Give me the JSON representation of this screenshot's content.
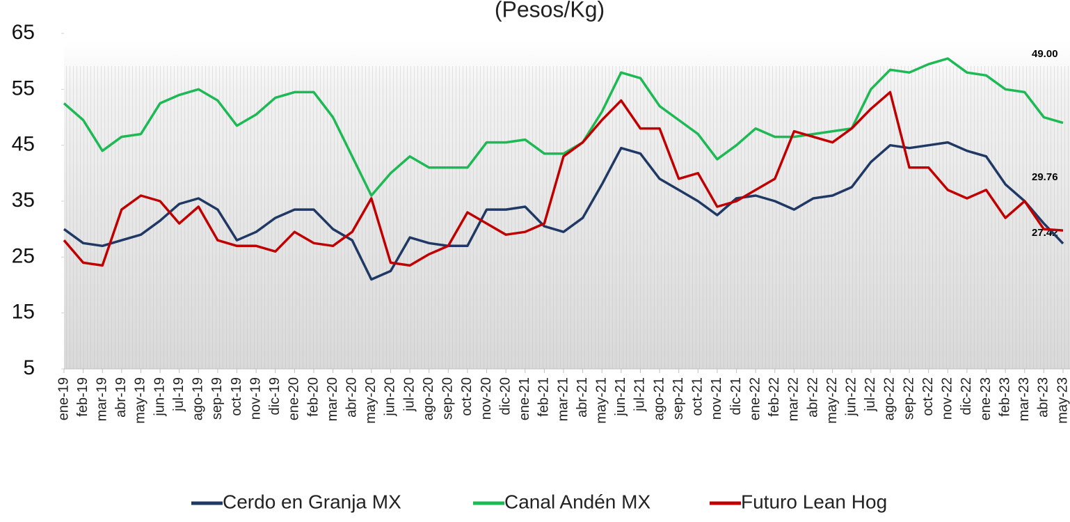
{
  "chart_data": {
    "type": "line",
    "title": "(Pesos/Kg)",
    "categories": [
      "ene-19",
      "feb-19",
      "mar-19",
      "abr-19",
      "may-19",
      "jun-19",
      "jul-19",
      "ago-19",
      "sep-19",
      "oct-19",
      "nov-19",
      "dic-19",
      "ene-20",
      "feb-20",
      "mar-20",
      "abr-20",
      "may-20",
      "jun-20",
      "jul-20",
      "ago-20",
      "sep-20",
      "oct-20",
      "nov-20",
      "dic-20",
      "ene-21",
      "feb-21",
      "mar-21",
      "abr-21",
      "may-21",
      "jun-21",
      "jul-21",
      "ago-21",
      "sep-21",
      "oct-21",
      "nov-21",
      "dic-21",
      "ene-22",
      "feb-22",
      "mar-22",
      "abr-22",
      "may-22",
      "jun-22",
      "jul-22",
      "ago-22",
      "sep-22",
      "oct-22",
      "nov-22",
      "dic-22",
      "ene-23",
      "feb-23",
      "mar-23",
      "abr-23",
      "may-23"
    ],
    "series": [
      {
        "name": "Cerdo en Granja MX",
        "color": "#1f3864",
        "values": [
          30,
          27.5,
          27,
          28,
          29,
          31.5,
          34.5,
          35.5,
          33.5,
          28,
          29.5,
          32,
          33.5,
          33.5,
          30,
          28,
          21,
          22.5,
          28.5,
          27.5,
          27,
          27,
          33.5,
          33.5,
          34,
          30.5,
          29.5,
          32,
          38,
          44.5,
          43.5,
          39,
          37,
          35,
          32.5,
          35.5,
          36,
          35,
          33.5,
          35.5,
          36,
          37.5,
          42,
          45,
          44.5,
          45,
          45.5,
          44,
          43,
          38,
          35,
          31,
          27.42
        ]
      },
      {
        "name": "Canal Andén MX",
        "color": "#1db954",
        "values": [
          52.5,
          49.5,
          44,
          46.5,
          47,
          52.5,
          54,
          55,
          53,
          48.5,
          50.5,
          53.5,
          54.5,
          54.5,
          50,
          43,
          36,
          40,
          43,
          41,
          41,
          41,
          45.5,
          45.5,
          46,
          43.5,
          43.5,
          45.5,
          51,
          58,
          57,
          52,
          49.5,
          47,
          42.5,
          45,
          48,
          46.5,
          46.5,
          47,
          47.5,
          48,
          55,
          58.5,
          58,
          59.5,
          60.5,
          58,
          57.5,
          55,
          54.5,
          50,
          49
        ]
      },
      {
        "name": "Futuro Lean Hog",
        "color": "#c00000",
        "values": [
          28,
          24,
          23.5,
          33.5,
          36,
          35,
          31,
          34,
          28,
          27,
          27,
          26,
          29.5,
          27.5,
          27,
          29.5,
          35.5,
          24,
          23.5,
          25.5,
          27,
          33,
          31,
          29,
          29.5,
          31,
          43,
          45.5,
          49.5,
          53,
          48,
          48,
          39,
          40,
          34,
          35,
          37,
          39,
          47.5,
          46.5,
          45.5,
          48,
          51.5,
          54.5,
          41,
          41,
          37,
          35.5,
          37,
          32,
          35,
          30,
          29.76
        ]
      }
    ],
    "annotations": [
      "49.00",
      "29.76",
      "27.42"
    ],
    "ylim": [
      5,
      65
    ],
    "yticks": [
      5,
      15,
      25,
      35,
      45,
      55,
      65
    ]
  }
}
